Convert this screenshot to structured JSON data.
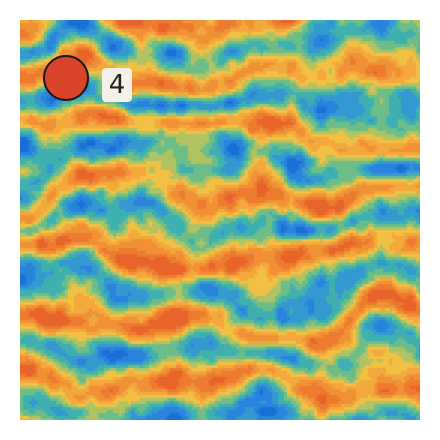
{
  "hud": {
    "score_value": "4"
  },
  "terrain": {
    "palette": {
      "deep_blue": "#1a6fd6",
      "mid_blue": "#2f8fde",
      "teal": "#3fb0b0",
      "green": "#7fc27a",
      "yellow": "#f2c544",
      "orange": "#f29a38",
      "red_orange": "#e8642a"
    }
  },
  "player": {
    "fill_color": "#d9442a"
  },
  "badge": {
    "background_color": "#f4f1e8",
    "text_color": "#222222"
  }
}
